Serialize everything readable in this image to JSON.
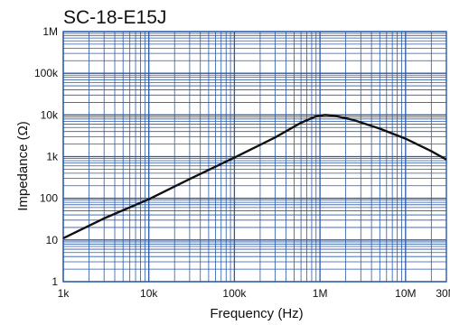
{
  "chart_data": {
    "type": "line",
    "title": "SC-18-E15J",
    "xlabel": "Frequency (Hz)",
    "ylabel": "Impedance (Ω)",
    "x_scale": "log",
    "y_scale": "log",
    "xlim": [
      1000,
      30000000
    ],
    "ylim": [
      1,
      1000000
    ],
    "grid": true,
    "x_ticks": [
      {
        "value": 1000,
        "label": "1k"
      },
      {
        "value": 10000,
        "label": "10k"
      },
      {
        "value": 100000,
        "label": "100k"
      },
      {
        "value": 1000000,
        "label": "1M"
      },
      {
        "value": 10000000,
        "label": "10M"
      },
      {
        "value": 30000000,
        "label": "30M"
      }
    ],
    "y_ticks": [
      {
        "value": 1,
        "label": "1"
      },
      {
        "value": 10,
        "label": "10"
      },
      {
        "value": 100,
        "label": "100"
      },
      {
        "value": 1000,
        "label": "1k"
      },
      {
        "value": 10000,
        "label": "10k"
      },
      {
        "value": 100000,
        "label": "100k"
      },
      {
        "value": 1000000,
        "label": "1M"
      }
    ],
    "series": [
      {
        "color": "#111111",
        "points": [
          [
            1000,
            11
          ],
          [
            3000,
            33
          ],
          [
            10000,
            95
          ],
          [
            30000,
            290
          ],
          [
            100000,
            950
          ],
          [
            300000,
            2900
          ],
          [
            600000,
            6500
          ],
          [
            900000,
            9300
          ],
          [
            1150000,
            10000
          ],
          [
            1500000,
            9500
          ],
          [
            2500000,
            7500
          ],
          [
            5000000,
            4700
          ],
          [
            10000000,
            2700
          ],
          [
            20000000,
            1350
          ],
          [
            30000000,
            850
          ]
        ]
      }
    ],
    "colors": {
      "grid": "#2a5aa8",
      "curve": "#111111"
    }
  }
}
